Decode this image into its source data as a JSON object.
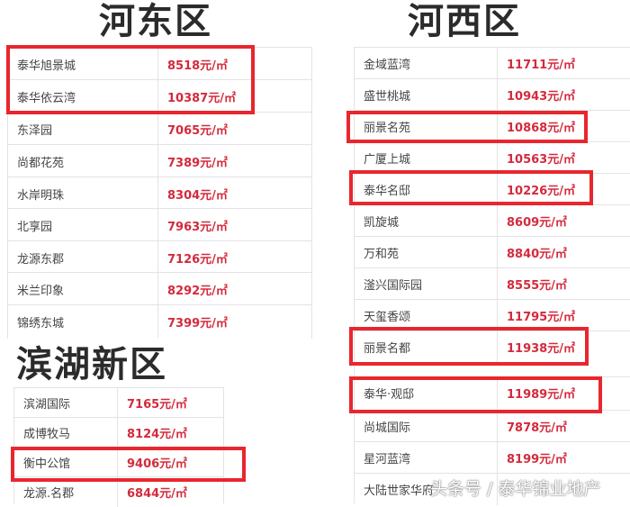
{
  "sections": [
    {
      "title": "河东区",
      "rows": [
        {
          "name": "泰华旭景城",
          "price": "8518元/㎡"
        },
        {
          "name": "泰华依云湾",
          "price": "10387元/㎡"
        },
        {
          "name": "东泽园",
          "price": "7065元/㎡"
        },
        {
          "name": "尚都花苑",
          "price": "7389元/㎡"
        },
        {
          "name": "水岸明珠",
          "price": "8304元/㎡"
        },
        {
          "name": "北享园",
          "price": "7963元/㎡"
        },
        {
          "name": "龙源东郡",
          "price": "7126元/㎡"
        },
        {
          "name": "米兰印象",
          "price": "8292元/㎡"
        },
        {
          "name": "锦绣东城",
          "price": "7399元/㎡"
        }
      ]
    },
    {
      "title": "滨湖新区",
      "rows": [
        {
          "name": "滨湖国际",
          "price": "7165元/㎡"
        },
        {
          "name": "成博牧马",
          "price": "8124元/㎡"
        },
        {
          "name": "衡中公馆",
          "price": "9406元/㎡"
        },
        {
          "name": "龙源.名郡",
          "price": "6844元/㎡"
        }
      ]
    },
    {
      "title": "河西区",
      "rows": [
        {
          "name": "金域蓝湾",
          "price": "11711元/㎡"
        },
        {
          "name": "盛世桃城",
          "price": "10943元/㎡"
        },
        {
          "name": "丽景名苑",
          "price": "10868元/㎡"
        },
        {
          "name": "广厦上城",
          "price": "10563元/㎡"
        },
        {
          "name": "泰华名邸",
          "price": "10226元/㎡"
        },
        {
          "name": "凯旋城",
          "price": "8609元/㎡"
        },
        {
          "name": "万和苑",
          "price": "8840元/㎡"
        },
        {
          "name": "滏兴国际园",
          "price": "8555元/㎡"
        },
        {
          "name": "天玺香颂",
          "price": "11795元/㎡"
        },
        {
          "name": "丽景名都",
          "price": "11938元/㎡"
        },
        {
          "name": "泰华·观邸",
          "price": "11989元/㎡"
        },
        {
          "name": "尚城国际",
          "price": "7878元/㎡"
        },
        {
          "name": "星河蓝湾",
          "price": "8199元/㎡"
        },
        {
          "name": "大陆世家华府",
          "price": ""
        }
      ]
    }
  ],
  "watermark": "头条号 / 泰华锦业地产",
  "colors": {
    "price": "#d42a3c",
    "highlight": "#e8262e"
  }
}
